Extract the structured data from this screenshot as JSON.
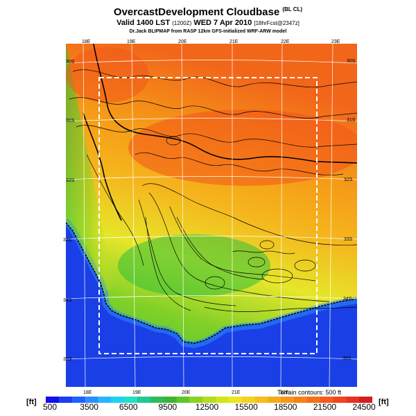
{
  "title": {
    "main": "OvercastDevelopment Cloudbase",
    "main_suffix": "(BL CL)",
    "valid": "Valid 1400 LST",
    "valid_z": "(1200Z)",
    "valid_date": "WED 7 Apr 2010",
    "valid_fcst": "[18hrFcst@2347z]",
    "credit": "Dr.Jack BLIPMAP from RASP 12km GFS-initialized WRF-ARW model"
  },
  "map": {
    "lon_labels_top": [
      "18E",
      "19E",
      "20E",
      "21E",
      "22E",
      "23E"
    ],
    "lon_labels_bottom": [
      "18E",
      "19E",
      "20E",
      "21E",
      "22E"
    ],
    "lat_labels_left": [
      "30S",
      "31S",
      "32S",
      "33S",
      "34S",
      "35S"
    ],
    "lat_labels_right": [
      "30S",
      "31S",
      "32S",
      "33S",
      "34S",
      "35S"
    ],
    "terrain_note": "Terrain contours: 500 ft",
    "colors": {
      "ocean": "#1a3fe6",
      "coast_green": "#2fbf3a",
      "mid_yellow": "#e6e62a",
      "inland_orange": "#f59a17",
      "north_red": "#f2531a",
      "contour": "#000000",
      "grid": "#ffffff"
    }
  },
  "colorbar": {
    "unit_left": "[ft]",
    "unit_right": "[ft]",
    "labels": [
      "500",
      "3500",
      "6500",
      "9500",
      "12500",
      "15500",
      "18500",
      "21500",
      "24500"
    ],
    "colors": [
      "#1010f0",
      "#1c3cf5",
      "#2060ff",
      "#2a8cff",
      "#2ab4ff",
      "#20d2f0",
      "#20e0c8",
      "#22c896",
      "#2abe5a",
      "#3cb432",
      "#5ac828",
      "#8cd220",
      "#b4dc20",
      "#d2e61e",
      "#ebe61e",
      "#f5d21c",
      "#f5be1a",
      "#f5aa18",
      "#f59618",
      "#f58218",
      "#f56e18",
      "#f55a1a",
      "#f0461e",
      "#e63220",
      "#d21e1e"
    ]
  }
}
